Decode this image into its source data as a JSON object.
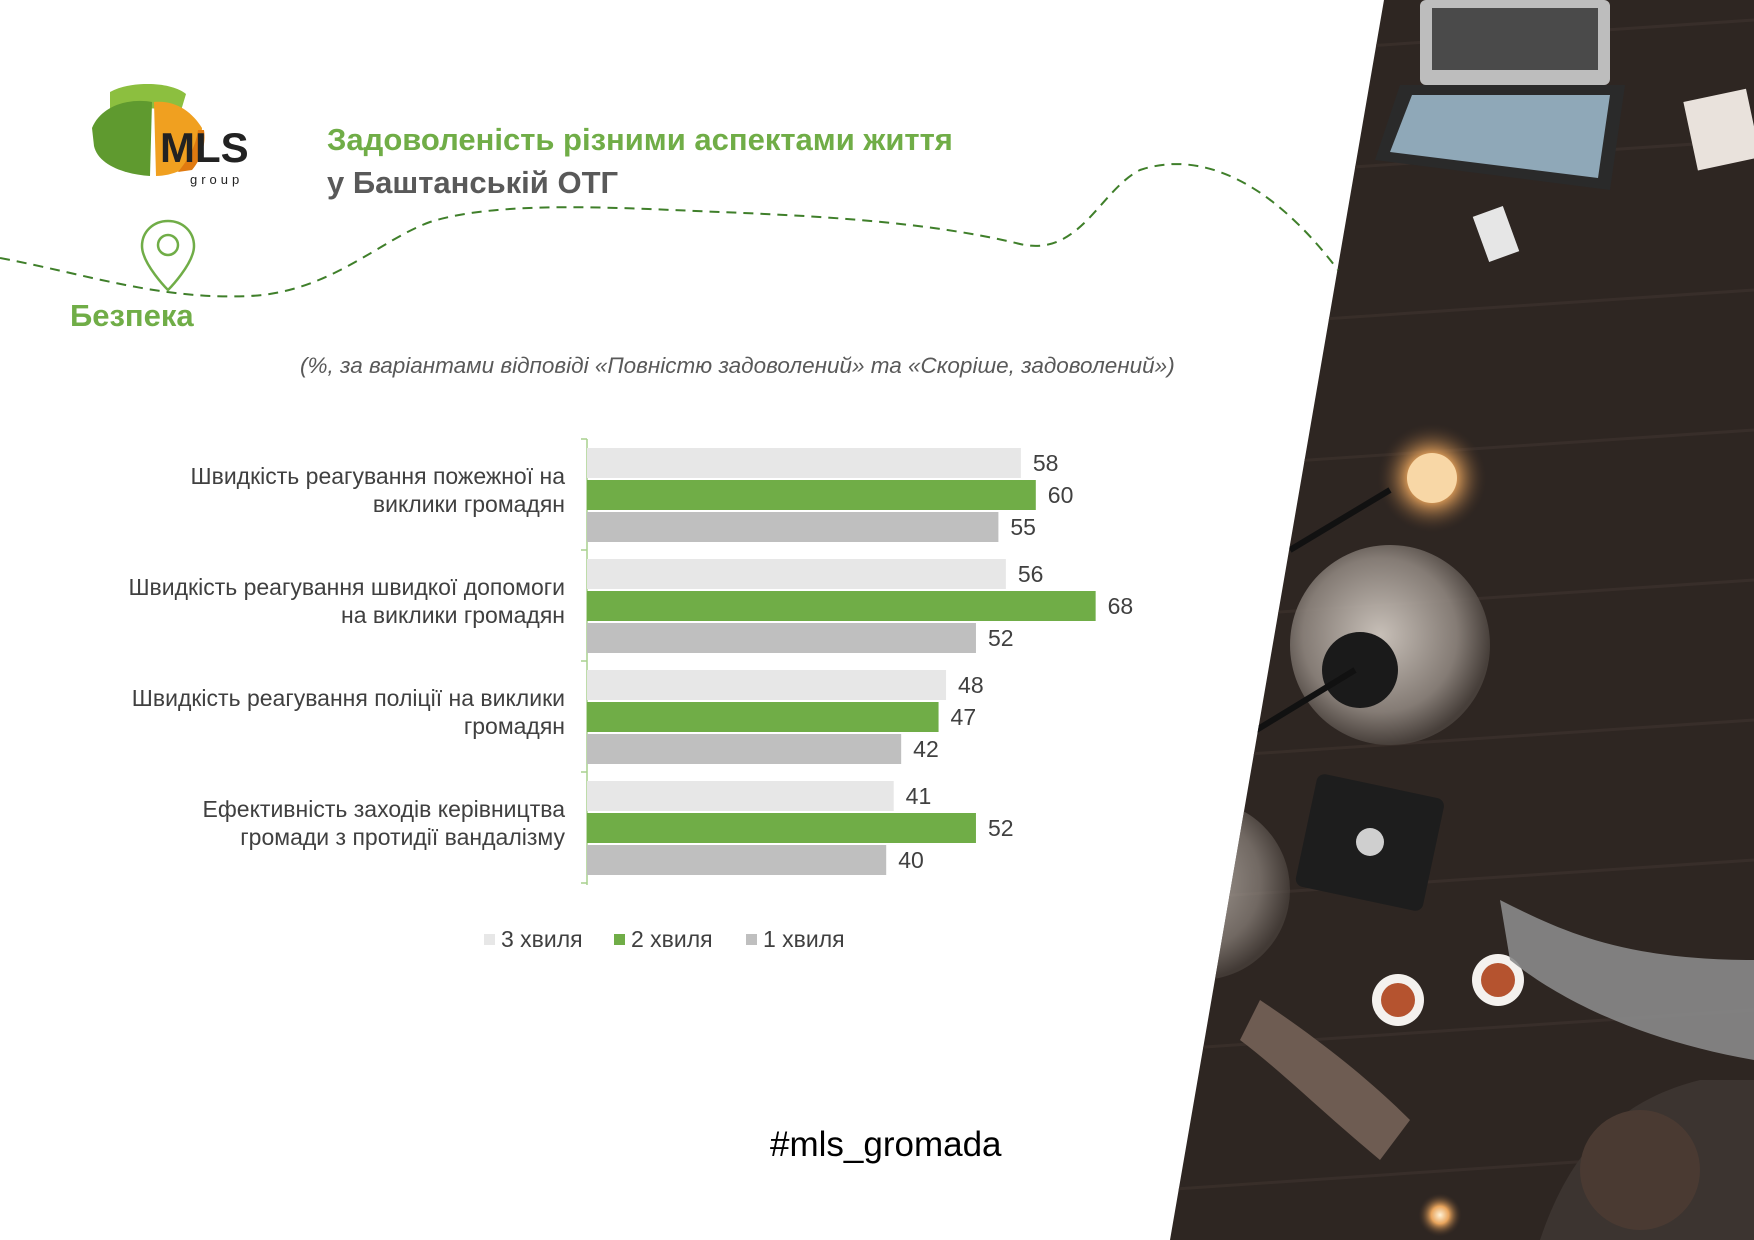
{
  "header": {
    "title_line1": "Задоволеність різними аспектами життя",
    "title_line2": "у Баштанській ОТГ",
    "logo_text": "MLS",
    "logo_sub": "group"
  },
  "section": {
    "label": "Безпека"
  },
  "subtitle": "(%, за варіантами відповіді «Повністю задоволений» та «Скоріше, задоволений»)",
  "footer": {
    "hashtag": "#mls_gromada"
  },
  "colors": {
    "accent_green": "#70ad47",
    "wave3": "#e7e7e7",
    "wave2": "#70ad47",
    "wave1": "#bfbfbf",
    "title_gray": "#595959"
  },
  "chart_data": {
    "type": "bar",
    "orientation": "horizontal",
    "categories": [
      "Швидкість реагування пожежної на виклики громадян",
      "Швидкість реагування швидкої допомоги на виклики громадян",
      "Швидкість реагування поліції на виклики громадян",
      "Ефективність заходів керівництва громади з протидії вандалізму"
    ],
    "category_lines": [
      [
        "Швидкість реагування пожежної на",
        "виклики громадян"
      ],
      [
        "Швидкість реагування швидкої допомоги",
        "на виклики громадян"
      ],
      [
        "Швидкість реагування поліції на виклики",
        "громадян"
      ],
      [
        "Ефективність заходів керівництва",
        "громади з протидії вандалізму"
      ]
    ],
    "series": [
      {
        "name": "3 хвиля",
        "color": "#e7e7e7",
        "values": [
          58,
          56,
          48,
          41
        ]
      },
      {
        "name": "2 хвиля",
        "color": "#70ad47",
        "values": [
          60,
          68,
          47,
          52
        ]
      },
      {
        "name": "1 хвиля",
        "color": "#bfbfbf",
        "values": [
          55,
          52,
          42,
          40
        ]
      }
    ],
    "xlim": [
      0,
      100
    ],
    "grid": false,
    "data_labels": true,
    "legend_position": "bottom"
  }
}
